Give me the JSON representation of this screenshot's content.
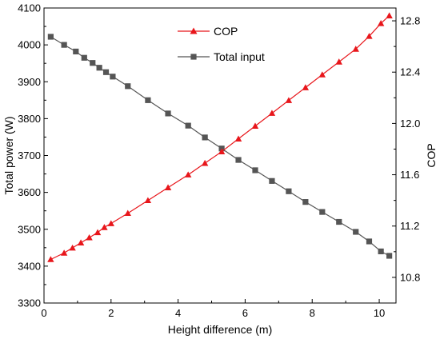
{
  "chart_data": {
    "type": "line",
    "title": "",
    "xlabel": "Height difference (m)",
    "ylabel_left": "Total power (W)",
    "ylabel_right": "COP",
    "xlim": [
      0,
      10.5
    ],
    "ylim_left": [
      3300,
      4100
    ],
    "ylim_right": [
      10.6,
      12.9
    ],
    "x_ticks": [
      0,
      2,
      4,
      6,
      8,
      10
    ],
    "y_left_ticks": [
      3300,
      3400,
      3500,
      3600,
      3700,
      3800,
      3900,
      4000,
      4100
    ],
    "y_right_ticks": [
      "10.8",
      "11.2",
      "11.6",
      "12.0",
      "12.4",
      "12.8"
    ],
    "grid": false,
    "legend_position": "top-center",
    "series": [
      {
        "name": "COP",
        "axis": "right",
        "color": "#e8161b",
        "marker": "triangle",
        "x": [
          0.2,
          0.6,
          0.85,
          1.1,
          1.35,
          1.6,
          1.8,
          2.0,
          2.5,
          3.1,
          3.7,
          4.3,
          4.8,
          5.3,
          5.8,
          6.3,
          6.8,
          7.3,
          7.8,
          8.3,
          8.8,
          9.3,
          9.7,
          10.05,
          10.3
        ],
        "y": [
          10.94,
          10.99,
          11.03,
          11.07,
          11.11,
          11.15,
          11.19,
          11.22,
          11.3,
          11.4,
          11.5,
          11.6,
          11.69,
          11.78,
          11.88,
          11.98,
          12.08,
          12.18,
          12.28,
          12.38,
          12.48,
          12.58,
          12.68,
          12.78,
          12.84
        ]
      },
      {
        "name": "Total input",
        "axis": "left",
        "color": "#555555",
        "marker": "square",
        "x": [
          0.2,
          0.6,
          0.95,
          1.2,
          1.45,
          1.65,
          1.85,
          2.05,
          2.5,
          3.1,
          3.7,
          4.3,
          4.8,
          5.3,
          5.8,
          6.3,
          6.8,
          7.3,
          7.8,
          8.3,
          8.8,
          9.3,
          9.7,
          10.05,
          10.3
        ],
        "y": [
          4022,
          4000,
          3982,
          3965,
          3951,
          3938,
          3926,
          3914,
          3888,
          3850,
          3814,
          3781,
          3749,
          3719,
          3688,
          3660,
          3631,
          3603,
          3574,
          3547,
          3520,
          3493,
          3467,
          3440,
          3428
        ]
      }
    ]
  }
}
